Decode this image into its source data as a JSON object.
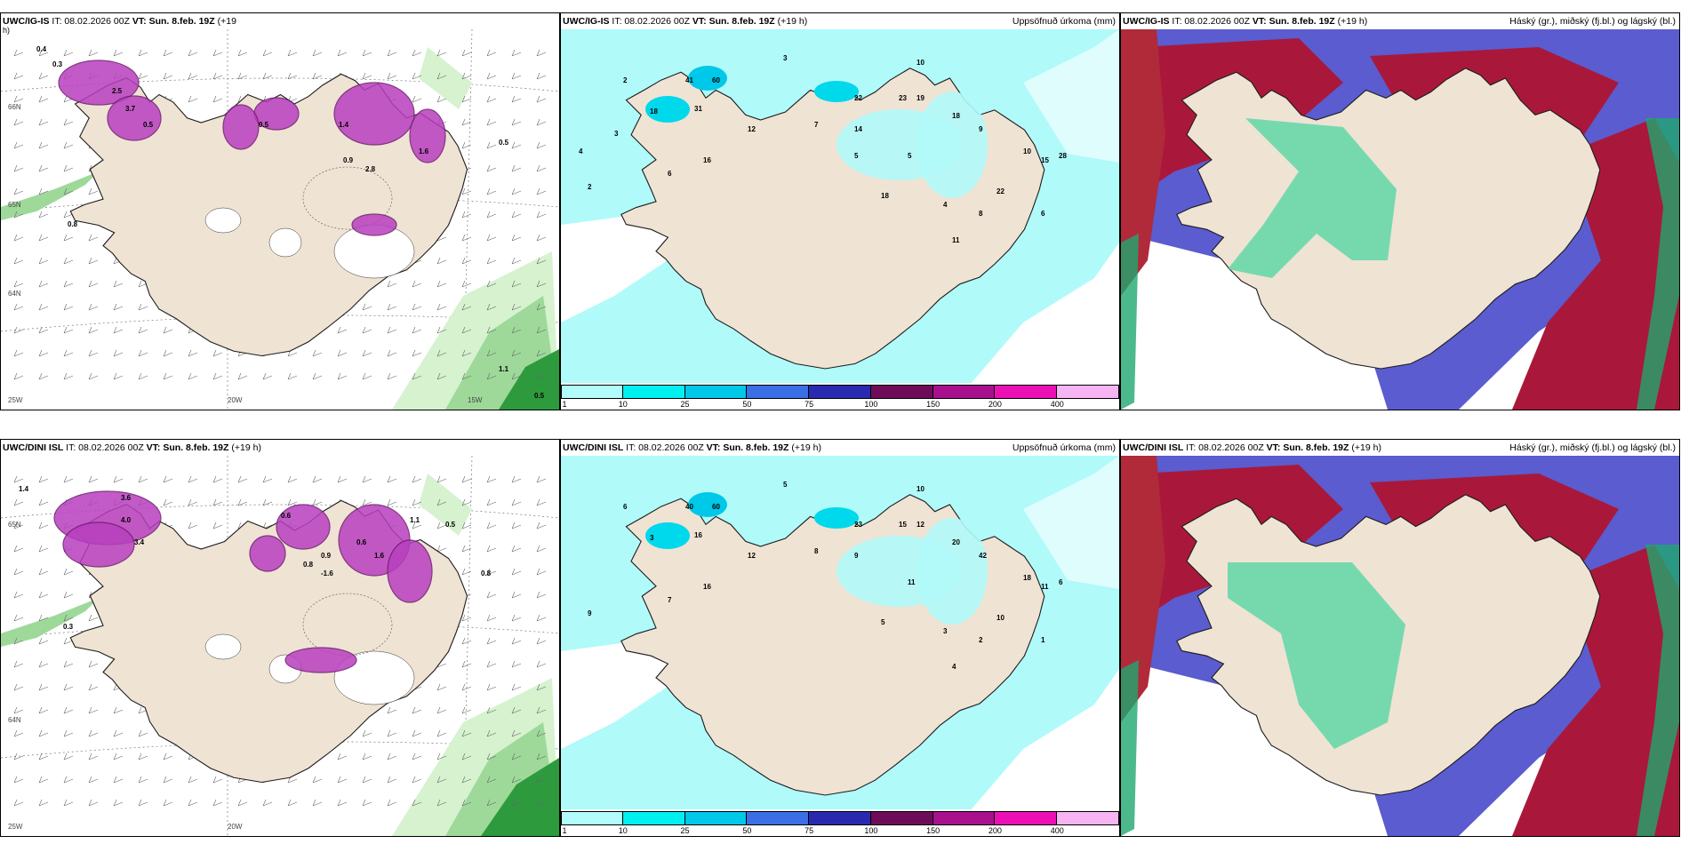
{
  "panels": [
    {
      "id": "p1",
      "title_model": "UWC/IG-IS",
      "title_it": "IT: 08.02.2026 00Z",
      "title_vt": "VT: Sun. 8.feb. 19Z",
      "title_lead": "(+19",
      "title_lead2": "h)",
      "right": "",
      "type": "wind"
    },
    {
      "id": "p2",
      "title_model": "UWC/IG-IS",
      "title_it": "IT: 08.02.2026 00Z",
      "title_vt": "VT: Sun. 8.feb. 19Z",
      "title_lead": "(+19 h)",
      "right": "Uppsöfnuð úrkoma (mm)",
      "type": "precip"
    },
    {
      "id": "p3",
      "title_model": "UWC/IG-IS",
      "title_it": "IT: 08.02.2026 00Z",
      "title_vt": "VT: Sun. 8.feb. 19Z",
      "title_lead": "(+19 h)",
      "right": "Háský (gr.), miðský (fj.bl.) og lágský (bl.)",
      "type": "cloud"
    },
    {
      "id": "p4",
      "title_model": "UWC/DINI ISL",
      "title_it": "IT: 08.02.2026 00Z",
      "title_vt": "VT: Sun. 8.feb. 19Z",
      "title_lead": "(+19 h)",
      "right": "",
      "type": "wind"
    },
    {
      "id": "p5",
      "title_model": "UWC/DINI ISL",
      "title_it": "IT: 08.02.2026 00Z",
      "title_vt": "VT: Sun. 8.feb. 19Z",
      "title_lead": "(+19 h)",
      "right": "Uppsöfnuð úrkoma (mm)",
      "type": "precip"
    },
    {
      "id": "p6",
      "title_model": "UWC/DINI ISL",
      "title_it": "IT: 08.02.2026 00Z",
      "title_vt": "VT: Sun. 8.feb. 19Z",
      "title_lead": "(+19 h)",
      "right": "Háský (gr.), miðský (fj.bl.) og lágský (bl.)",
      "type": "cloud"
    }
  ],
  "colorbar": {
    "ticks": [
      "1",
      "10",
      "25",
      "50",
      "75",
      "100",
      "150",
      "200",
      "400"
    ],
    "colors": [
      "#b3fcfc",
      "#00f0f0",
      "#00c8e8",
      "#3a6fe6",
      "#2a2ab0",
      "#6e0c5a",
      "#a8108e",
      "#ec10b4",
      "#f6b4f2"
    ]
  },
  "wind_labels": {
    "p1": {
      "axis": [
        "20W",
        "15W",
        "25W",
        "64N",
        "65N",
        "66N"
      ],
      "values": [
        "0.4",
        "0.3",
        "2.5",
        "3.7",
        "0.5",
        "0.8",
        "0.5",
        "1.4",
        "1.1",
        "0.5",
        "0.9",
        "1.6",
        "2.8",
        "0.5"
      ]
    },
    "p4": {
      "axis": [
        "20W",
        "25W",
        "64N",
        "65N"
      ],
      "values": [
        "1.4",
        "3.6",
        "4.0",
        "3.4",
        "0.6",
        "0.9",
        "0.6",
        "1.6",
        "-1.6",
        "0.8",
        "0.5",
        "1.1",
        "0.8",
        "0.3"
      ]
    }
  },
  "precip_labels": {
    "p2": [
      "3",
      "10",
      "2",
      "18",
      "31",
      "41",
      "60",
      "12",
      "16",
      "6",
      "7",
      "14",
      "5",
      "22",
      "23",
      "19",
      "18",
      "9",
      "10",
      "15",
      "28",
      "22",
      "18",
      "4",
      "8",
      "6",
      "11",
      "2",
      "3",
      "4",
      "5"
    ],
    "p5": [
      "5",
      "10",
      "6",
      "3",
      "16",
      "40",
      "60",
      "12",
      "16",
      "7",
      "8",
      "9",
      "11",
      "23",
      "15",
      "12",
      "20",
      "42",
      "18",
      "11",
      "6",
      "10",
      "5",
      "3",
      "2",
      "1",
      "4",
      "9"
    ]
  },
  "colors": {
    "land": "#efe3d4",
    "coast": "#1c1c1c",
    "cyan": "#b0fafa",
    "wind_green_light": "#d6f2cf",
    "wind_green": "#9ed99a",
    "wind_green_dark": "#2e9a3e",
    "purple": "#b83fbf",
    "purple_dark": "#6e1a6e",
    "cloud_high": "#a9183a",
    "cloud_mid": "#5a5ccf",
    "cloud_low": "#4dd6a1"
  }
}
